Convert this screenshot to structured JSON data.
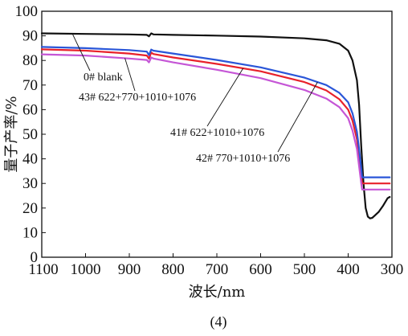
{
  "figure_label": "(4)",
  "chart_data": {
    "type": "line",
    "title": "",
    "xlabel": "波长/nm",
    "ylabel": "量子产率/%",
    "xlim": [
      1100,
      300
    ],
    "ylim": [
      0,
      100
    ],
    "x_ticks": [
      1100,
      1000,
      900,
      800,
      700,
      600,
      500,
      400,
      300
    ],
    "y_ticks": [
      0,
      10,
      20,
      30,
      40,
      50,
      60,
      70,
      80,
      90,
      100
    ],
    "grid": false,
    "colors": {
      "0# blank": "#111111",
      "41# 622+1010+1076": "#e8212b",
      "42# 770+1010+1076": "#2a56d8",
      "43# 622+770+1010+1076": "#c556d6"
    },
    "series": [
      {
        "name": "0# blank",
        "x": [
          1100,
          1000,
          900,
          860,
          855,
          850,
          845,
          800,
          700,
          600,
          500,
          450,
          420,
          400,
          390,
          380,
          375,
          370,
          365,
          360,
          355,
          350,
          345,
          340,
          330,
          320,
          310,
          305
        ],
        "y": [
          91,
          90.8,
          90.6,
          90.4,
          89.8,
          91.0,
          90.6,
          90.4,
          90.1,
          89.7,
          89.0,
          88.2,
          86.8,
          84.0,
          80.0,
          72.0,
          62.0,
          45.0,
          30.0,
          20.0,
          16.5,
          15.8,
          16.0,
          16.8,
          18.5,
          21.0,
          24.0,
          24.5
        ]
      },
      {
        "name": "41# 622+1010+1076",
        "x": [
          1100,
          1000,
          900,
          860,
          855,
          850,
          845,
          800,
          700,
          600,
          500,
          450,
          420,
          400,
          390,
          380,
          375,
          370,
          368,
          360,
          340,
          320,
          310,
          305
        ],
        "y": [
          84.5,
          84.0,
          82.8,
          82.0,
          80.8,
          83.2,
          82.6,
          81.2,
          78.6,
          75.6,
          71.2,
          67.8,
          64.2,
          60.0,
          55.5,
          48.0,
          41.0,
          33.0,
          30.0,
          30.0,
          30.0,
          30.0,
          30.0,
          30.0
        ]
      },
      {
        "name": "42# 770+1010+1076",
        "x": [
          1100,
          1000,
          900,
          860,
          855,
          850,
          845,
          800,
          700,
          600,
          500,
          450,
          420,
          400,
          390,
          380,
          375,
          370,
          368,
          360,
          340,
          320,
          310,
          305
        ],
        "y": [
          85.5,
          85.0,
          84.2,
          83.6,
          82.2,
          84.4,
          84.0,
          82.8,
          80.2,
          77.2,
          73.0,
          70.0,
          66.8,
          63.0,
          58.5,
          51.0,
          44.0,
          36.0,
          32.5,
          32.5,
          32.5,
          32.5,
          32.5,
          32.5
        ]
      },
      {
        "name": "43# 622+770+1010+1076",
        "x": [
          1100,
          1000,
          900,
          860,
          855,
          850,
          845,
          800,
          700,
          600,
          500,
          450,
          420,
          400,
          390,
          380,
          375,
          370,
          368,
          360,
          340,
          320,
          310,
          305
        ],
        "y": [
          82.5,
          82.0,
          80.8,
          80.2,
          79.2,
          81.2,
          80.8,
          79.2,
          76.2,
          72.8,
          68.0,
          64.5,
          61.0,
          56.5,
          51.5,
          44.0,
          37.0,
          30.0,
          27.5,
          27.5,
          27.5,
          27.5,
          27.5,
          27.5
        ]
      }
    ],
    "annotations": [
      {
        "text": "0# blank",
        "series": "0# blank"
      },
      {
        "text": "43# 622+770+1010+1076",
        "series": "43# 622+770+1010+1076"
      },
      {
        "text": "41# 622+1010+1076",
        "series": "41# 622+1010+1076"
      },
      {
        "text": "42# 770+1010+1076",
        "series": "42# 770+1010+1076"
      }
    ]
  }
}
